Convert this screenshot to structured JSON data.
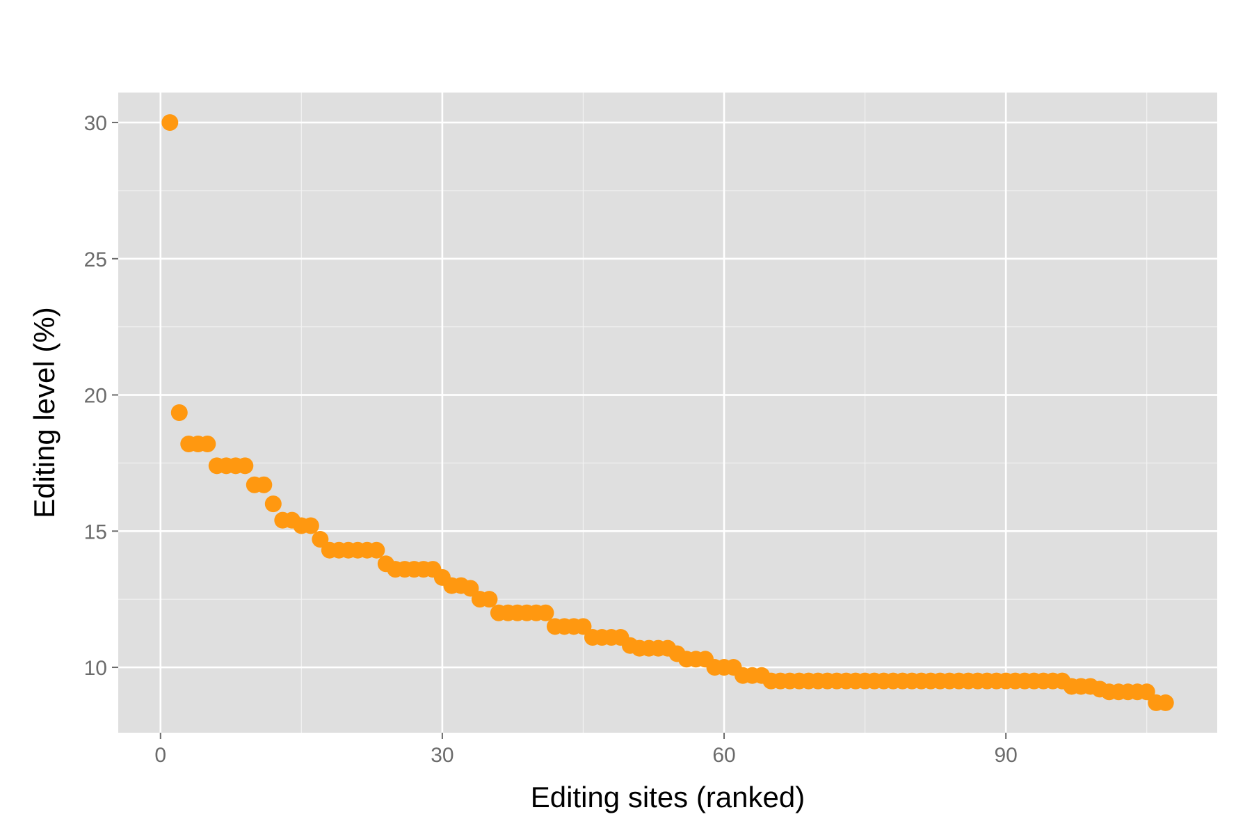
{
  "chart_data": {
    "type": "scatter",
    "title": "",
    "xlabel": "Editing sites (ranked)",
    "ylabel": "Editing level (%)",
    "xlim": [
      -4.5,
      112.5
    ],
    "ylim": [
      7.6,
      31.1
    ],
    "x_ticks": [
      0,
      30,
      60,
      90
    ],
    "y_ticks": [
      10,
      15,
      20,
      25,
      30
    ],
    "x_tick_labels": [
      "0",
      "30",
      "60",
      "90"
    ],
    "y_tick_labels": [
      "10",
      "15",
      "20",
      "25",
      "30"
    ],
    "grid": true,
    "legend": "none",
    "series": [
      {
        "color": "#FF9810",
        "x": [
          1,
          2,
          3,
          4,
          5,
          6,
          7,
          8,
          9,
          10,
          11,
          12,
          13,
          14,
          15,
          16,
          17,
          18,
          19,
          20,
          21,
          22,
          23,
          24,
          25,
          26,
          27,
          28,
          29,
          30,
          31,
          32,
          33,
          34,
          35,
          36,
          37,
          38,
          39,
          40,
          41,
          42,
          43,
          44,
          45,
          46,
          47,
          48,
          49,
          50,
          51,
          52,
          53,
          54,
          55,
          56,
          57,
          58,
          59,
          60,
          61,
          62,
          63,
          64,
          65,
          66,
          67,
          68,
          69,
          70,
          71,
          72,
          73,
          74,
          75,
          76,
          77,
          78,
          79,
          80,
          81,
          82,
          83,
          84,
          85,
          86,
          87,
          88,
          89,
          90,
          91,
          92,
          93,
          94,
          95,
          96,
          97,
          98,
          99,
          100,
          101,
          102,
          103,
          104,
          105,
          106,
          107
        ],
        "values": [
          30.0,
          19.35,
          18.2,
          18.2,
          18.2,
          17.4,
          17.4,
          17.4,
          17.4,
          16.7,
          16.7,
          16.0,
          15.4,
          15.4,
          15.2,
          15.2,
          14.7,
          14.3,
          14.3,
          14.3,
          14.3,
          14.3,
          14.3,
          13.8,
          13.6,
          13.6,
          13.6,
          13.6,
          13.6,
          13.3,
          13.0,
          13.0,
          12.9,
          12.5,
          12.5,
          12.0,
          12.0,
          12.0,
          12.0,
          12.0,
          12.0,
          11.5,
          11.5,
          11.5,
          11.5,
          11.1,
          11.1,
          11.1,
          11.1,
          10.8,
          10.7,
          10.7,
          10.7,
          10.7,
          10.5,
          10.3,
          10.3,
          10.3,
          10.0,
          10.0,
          10.0,
          9.7,
          9.7,
          9.7,
          9.5,
          9.5,
          9.5,
          9.5,
          9.5,
          9.5,
          9.5,
          9.5,
          9.5,
          9.5,
          9.5,
          9.5,
          9.5,
          9.5,
          9.5,
          9.5,
          9.5,
          9.5,
          9.5,
          9.5,
          9.5,
          9.5,
          9.5,
          9.5,
          9.5,
          9.5,
          9.5,
          9.5,
          9.5,
          9.5,
          9.5,
          9.5,
          9.3,
          9.3,
          9.3,
          9.2,
          9.1,
          9.1,
          9.1,
          9.1,
          9.1,
          8.7,
          8.7
        ]
      }
    ]
  }
}
